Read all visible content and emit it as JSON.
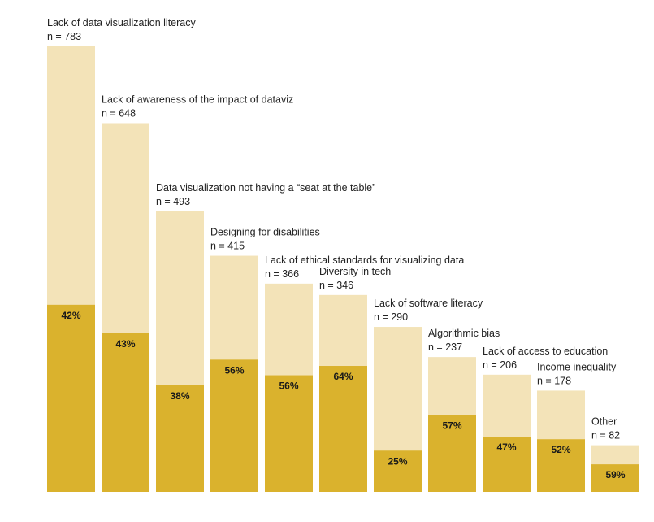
{
  "chart_data": {
    "type": "bar",
    "title": "",
    "xlabel": "",
    "ylabel": "",
    "ylim": [
      0,
      783
    ],
    "categories": [
      "Lack of data visualization literacy",
      "Lack of awareness of the impact of dataviz",
      "Data visualization not having a “seat at the table”",
      "Designing for disabilities",
      "Lack of ethical standards for visualizing data",
      "Diversity in tech",
      "Lack of software literacy",
      "Algorithmic bias",
      "Lack of access to education",
      "Income inequality",
      "Other"
    ],
    "n_labels": [
      "n = 783",
      "n = 648",
      "n = 493",
      "n = 415",
      "n = 366",
      "n = 346",
      "n = 290",
      "n = 237",
      "n = 206",
      "n = 178",
      "n = 82"
    ],
    "series": [
      {
        "name": "total_n",
        "values": [
          783,
          648,
          493,
          415,
          366,
          346,
          290,
          237,
          206,
          178,
          82
        ]
      },
      {
        "name": "percent",
        "values": [
          42,
          43,
          38,
          56,
          56,
          64,
          25,
          57,
          47,
          52,
          59
        ]
      }
    ],
    "percent_labels": [
      "42%",
      "43%",
      "38%",
      "56%",
      "56%",
      "64%",
      "25%",
      "57%",
      "47%",
      "52%",
      "59%"
    ],
    "colors": {
      "total": "#f3e3b8",
      "share": "#dab22d",
      "text": "#222222"
    }
  }
}
